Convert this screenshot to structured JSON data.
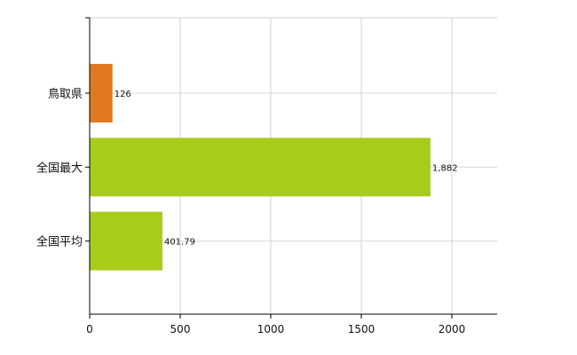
{
  "chart_data": {
    "type": "bar",
    "orientation": "horizontal",
    "categories": [
      "鳥取県",
      "全国最大",
      "全国平均"
    ],
    "values": [
      126,
      1882,
      401.79
    ],
    "value_labels": [
      "126",
      "1,882",
      "401.79"
    ],
    "bar_colors": [
      "#E07A20",
      "#A8CC1C",
      "#A8CC1C"
    ],
    "xlim": [
      0,
      2250
    ],
    "x_ticks": [
      0,
      500,
      1000,
      1500,
      2000
    ],
    "x_tick_labels": [
      "0",
      "500",
      "1000",
      "1500",
      "2000"
    ],
    "grid": true,
    "title": "",
    "xlabel": "",
    "ylabel": ""
  }
}
